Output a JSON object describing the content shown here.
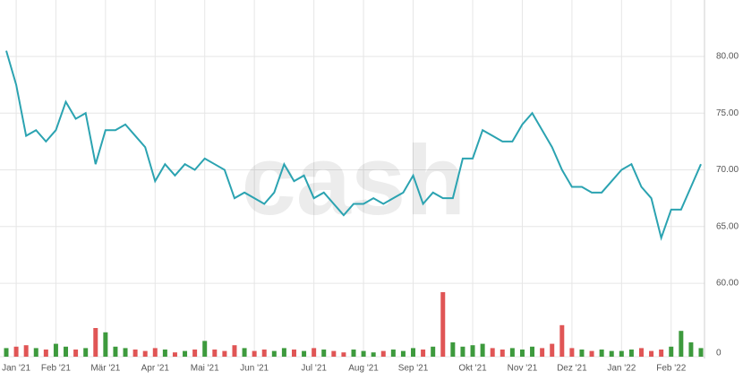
{
  "chart_data": {
    "type": "line",
    "watermark": "cash",
    "categories": [
      null,
      "Jan '21",
      null,
      null,
      null,
      "Feb '21",
      null,
      null,
      null,
      null,
      "Mär '21",
      null,
      null,
      null,
      null,
      "Apr '21",
      null,
      null,
      null,
      null,
      "Mai '21",
      null,
      null,
      null,
      null,
      "Jun '21",
      null,
      null,
      null,
      null,
      null,
      "Jul '21",
      null,
      null,
      null,
      null,
      "Aug '21",
      null,
      null,
      null,
      null,
      "Sep '21",
      null,
      null,
      null,
      null,
      null,
      "Okt '21",
      null,
      null,
      null,
      null,
      "Nov '21",
      null,
      null,
      null,
      null,
      "Dez '21",
      null,
      null,
      null,
      null,
      "Jan '22",
      null,
      null,
      null,
      null,
      "Feb '22",
      null,
      null,
      null
    ],
    "series": [
      {
        "color": "#2ba3b1",
        "values": [
          80.5,
          77.5,
          73,
          73.5,
          72.5,
          73.5,
          76,
          74.5,
          75,
          70.5,
          73.5,
          73.5,
          74,
          73,
          72,
          69,
          70.5,
          69.5,
          70.5,
          70,
          71,
          70.5,
          70,
          67.5,
          68,
          67.5,
          67,
          68,
          70.5,
          69,
          69.5,
          67.5,
          68,
          67,
          66,
          67,
          67,
          67.5,
          67,
          67.5,
          68,
          69.5,
          67,
          68,
          67.5,
          67.5,
          71,
          71,
          73.5,
          73,
          72.5,
          72.5,
          74,
          75,
          73.5,
          72,
          70,
          68.5,
          68.5,
          68,
          68,
          69,
          70,
          70.5,
          68.5,
          67.5,
          64,
          66.5,
          66.5,
          68.5,
          70.5
        ]
      },
      {
        "type": "bar",
        "axis": "y2",
        "up_color": "#3d9a3d",
        "down_color": "#e05555",
        "values": [
          12,
          14,
          16,
          12,
          10,
          18,
          14,
          10,
          12,
          40,
          34,
          14,
          12,
          10,
          8,
          12,
          10,
          6,
          8,
          10,
          22,
          10,
          8,
          16,
          12,
          8,
          10,
          8,
          12,
          10,
          8,
          12,
          10,
          8,
          6,
          10,
          8,
          6,
          8,
          10,
          8,
          12,
          10,
          14,
          90,
          20,
          14,
          16,
          18,
          12,
          10,
          12,
          10,
          14,
          12,
          18,
          44,
          12,
          10,
          8,
          10,
          8,
          8,
          10,
          12,
          8,
          10,
          14,
          36,
          20,
          12
        ]
      }
    ],
    "ylim": [
      58.9,
      84.5
    ],
    "yticks": [
      {
        "value": 60,
        "label": "60.00"
      },
      {
        "value": 65,
        "label": "65.00"
      },
      {
        "value": 70,
        "label": "70.00"
      },
      {
        "value": 75,
        "label": "75.00"
      },
      {
        "value": 80,
        "label": "80.00"
      }
    ],
    "y2lim": [
      0,
      100
    ],
    "y2ticks": [
      0
    ],
    "grid": true
  }
}
